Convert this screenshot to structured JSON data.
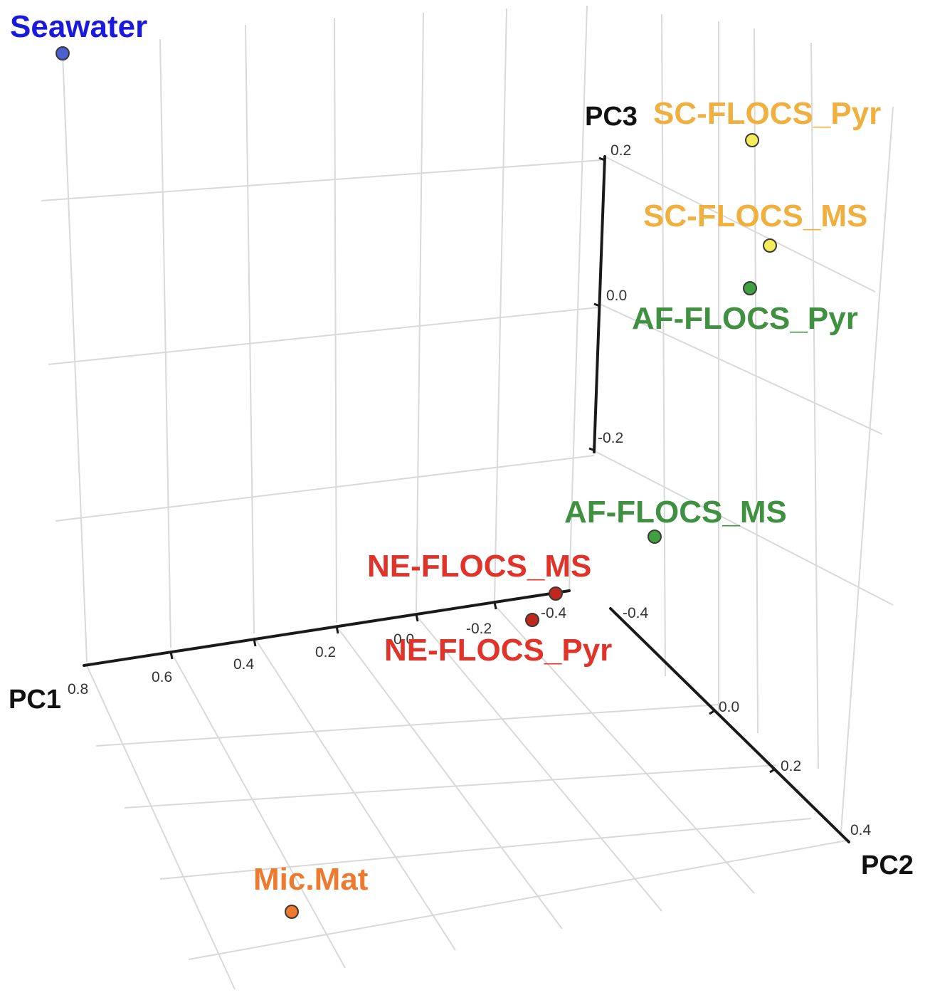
{
  "chart_data": {
    "type": "scatter",
    "dimensions": 3,
    "axes": {
      "x": {
        "label": "PC1",
        "ticks": [
          "0.8",
          "0.6",
          "0.4",
          "0.2",
          "0.0",
          "-0.2",
          "-0.4"
        ]
      },
      "y": {
        "label": "PC2",
        "ticks": [
          "-0.4",
          "0.0",
          "0.2",
          "0.4"
        ]
      },
      "z": {
        "label": "PC3",
        "ticks": [
          "0.2",
          "0.0",
          "-0.2"
        ]
      }
    },
    "grid": true,
    "points": [
      {
        "name": "Seawater",
        "color": "#4a5fd0",
        "label_color": "#1a1adc"
      },
      {
        "name": "SC-FLOCS_Pyr",
        "color": "#f4ec5a",
        "label_color": "#f0b040"
      },
      {
        "name": "SC-FLOCS_MS",
        "color": "#f4ec5a",
        "label_color": "#f0b040"
      },
      {
        "name": "AF-FLOCS_Pyr",
        "color": "#3fa040",
        "label_color": "#3f9040"
      },
      {
        "name": "AF-FLOCS_MS",
        "color": "#3fa040",
        "label_color": "#3f9040"
      },
      {
        "name": "NE-FLOCS_MS",
        "color": "#c0281e",
        "label_color": "#e0342a"
      },
      {
        "name": "NE-FLOCS_Pyr",
        "color": "#c0281e",
        "label_color": "#e0342a"
      },
      {
        "name": "Mic.Mat",
        "color": "#ee7a30",
        "label_color": "#ee7a30"
      }
    ]
  }
}
